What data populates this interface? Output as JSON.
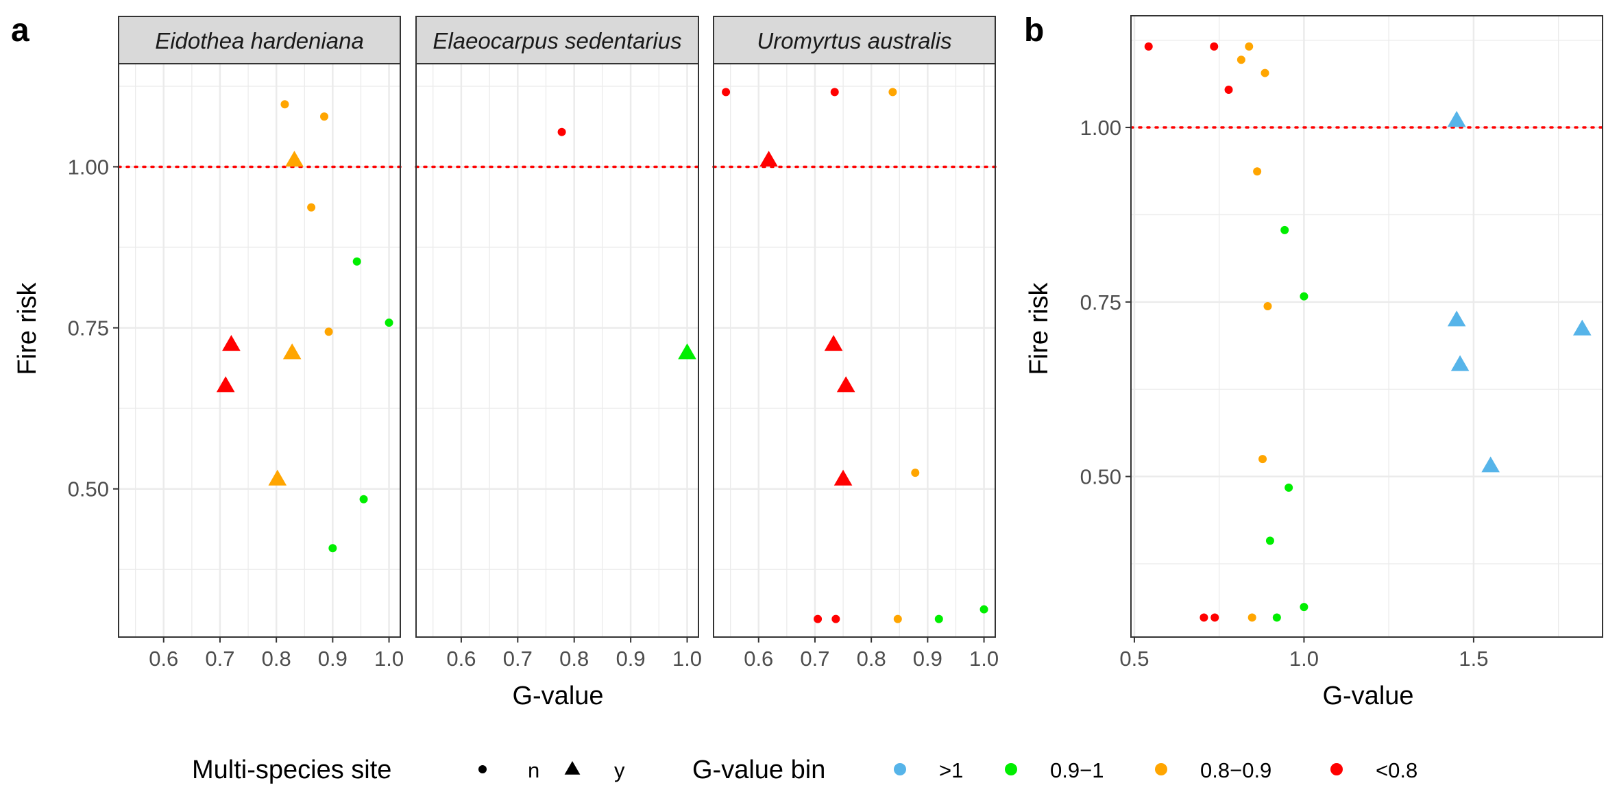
{
  "chart_data": [
    {
      "panel": "a",
      "type": "scatter",
      "xlabel": "G-value",
      "ylabel": "Fire risk",
      "xlim": [
        0.52,
        1.02
      ],
      "ylim": [
        0.27,
        1.16
      ],
      "xticks": [
        "0.6",
        "0.7",
        "0.8",
        "0.9",
        "1.0"
      ],
      "yticks": [
        "0.50",
        "0.75",
        "1.00"
      ],
      "reference_line": {
        "y": 1.0,
        "color": "#ff0000",
        "style": "dotted"
      },
      "facets": [
        {
          "label": "Eidothea hardeniana",
          "points": [
            {
              "x": 0.815,
              "y": 1.097,
              "bin": "0.8-0.9",
              "multi": "n"
            },
            {
              "x": 0.885,
              "y": 1.078,
              "bin": "0.8-0.9",
              "multi": "n"
            },
            {
              "x": 0.832,
              "y": 1.01,
              "bin": "0.8-0.9",
              "multi": "y"
            },
            {
              "x": 0.862,
              "y": 0.937,
              "bin": "0.8-0.9",
              "multi": "n"
            },
            {
              "x": 0.943,
              "y": 0.853,
              "bin": "0.9-1",
              "multi": "n"
            },
            {
              "x": 1.0,
              "y": 0.758,
              "bin": "0.9-1",
              "multi": "n"
            },
            {
              "x": 0.893,
              "y": 0.744,
              "bin": "0.8-0.9",
              "multi": "n"
            },
            {
              "x": 0.72,
              "y": 0.724,
              "bin": "<0.8",
              "multi": "y"
            },
            {
              "x": 0.828,
              "y": 0.711,
              "bin": "0.8-0.9",
              "multi": "y"
            },
            {
              "x": 0.71,
              "y": 0.66,
              "bin": "<0.8",
              "multi": "y"
            },
            {
              "x": 0.802,
              "y": 0.515,
              "bin": "0.8-0.9",
              "multi": "y"
            },
            {
              "x": 0.955,
              "y": 0.484,
              "bin": "0.9-1",
              "multi": "n"
            },
            {
              "x": 0.9,
              "y": 0.408,
              "bin": "0.9-1",
              "multi": "n"
            }
          ]
        },
        {
          "label": "Elaeocarpus sedentarius",
          "points": [
            {
              "x": 0.778,
              "y": 1.054,
              "bin": "<0.8",
              "multi": "n"
            },
            {
              "x": 1.0,
              "y": 0.711,
              "bin": "0.9-1",
              "multi": "y"
            }
          ]
        },
        {
          "label": "Uromyrtus australis",
          "points": [
            {
              "x": 0.542,
              "y": 1.116,
              "bin": "<0.8",
              "multi": "n"
            },
            {
              "x": 0.735,
              "y": 1.116,
              "bin": "<0.8",
              "multi": "n"
            },
            {
              "x": 0.838,
              "y": 1.116,
              "bin": "0.8-0.9",
              "multi": "n"
            },
            {
              "x": 0.618,
              "y": 1.01,
              "bin": "<0.8",
              "multi": "y"
            },
            {
              "x": 0.733,
              "y": 0.724,
              "bin": "<0.8",
              "multi": "y"
            },
            {
              "x": 0.755,
              "y": 0.66,
              "bin": "<0.8",
              "multi": "y"
            },
            {
              "x": 0.75,
              "y": 0.515,
              "bin": "<0.8",
              "multi": "y"
            },
            {
              "x": 0.878,
              "y": 0.525,
              "bin": "0.8-0.9",
              "multi": "n"
            },
            {
              "x": 0.705,
              "y": 0.298,
              "bin": "<0.8",
              "multi": "n"
            },
            {
              "x": 0.737,
              "y": 0.298,
              "bin": "<0.8",
              "multi": "n"
            },
            {
              "x": 0.847,
              "y": 0.298,
              "bin": "0.8-0.9",
              "multi": "n"
            },
            {
              "x": 0.92,
              "y": 0.298,
              "bin": "0.9-1",
              "multi": "n"
            },
            {
              "x": 1.0,
              "y": 0.313,
              "bin": "0.9-1",
              "multi": "n"
            }
          ]
        }
      ]
    },
    {
      "panel": "b",
      "type": "scatter",
      "xlabel": "G-value",
      "ylabel": "Fire risk",
      "xlim": [
        0.49,
        1.88
      ],
      "ylim": [
        0.27,
        1.16
      ],
      "xticks": [
        "0.5",
        "1.0",
        "1.5"
      ],
      "yticks": [
        "0.50",
        "0.75",
        "1.00"
      ],
      "reference_line": {
        "y": 1.0,
        "color": "#ff0000",
        "style": "dotted"
      },
      "points": [
        {
          "x": 0.542,
          "y": 1.116,
          "bin": "<0.8",
          "multi": "n"
        },
        {
          "x": 0.735,
          "y": 1.116,
          "bin": "<0.8",
          "multi": "n"
        },
        {
          "x": 0.838,
          "y": 1.116,
          "bin": "0.8-0.9",
          "multi": "n"
        },
        {
          "x": 0.815,
          "y": 1.097,
          "bin": "0.8-0.9",
          "multi": "n"
        },
        {
          "x": 0.885,
          "y": 1.078,
          "bin": "0.8-0.9",
          "multi": "n"
        },
        {
          "x": 0.778,
          "y": 1.054,
          "bin": "<0.8",
          "multi": "n"
        },
        {
          "x": 1.45,
          "y": 1.01,
          "bin": ">1",
          "multi": "y"
        },
        {
          "x": 0.862,
          "y": 0.937,
          "bin": "0.8-0.9",
          "multi": "n"
        },
        {
          "x": 0.943,
          "y": 0.853,
          "bin": "0.9-1",
          "multi": "n"
        },
        {
          "x": 1.0,
          "y": 0.758,
          "bin": "0.9-1",
          "multi": "n"
        },
        {
          "x": 0.893,
          "y": 0.744,
          "bin": "0.8-0.9",
          "multi": "n"
        },
        {
          "x": 1.45,
          "y": 0.724,
          "bin": ">1",
          "multi": "y"
        },
        {
          "x": 1.82,
          "y": 0.711,
          "bin": ">1",
          "multi": "y"
        },
        {
          "x": 1.46,
          "y": 0.66,
          "bin": ">1",
          "multi": "y"
        },
        {
          "x": 0.878,
          "y": 0.525,
          "bin": "0.8-0.9",
          "multi": "n"
        },
        {
          "x": 1.55,
          "y": 0.515,
          "bin": ">1",
          "multi": "y"
        },
        {
          "x": 0.955,
          "y": 0.484,
          "bin": "0.9-1",
          "multi": "n"
        },
        {
          "x": 0.9,
          "y": 0.408,
          "bin": "0.9-1",
          "multi": "n"
        },
        {
          "x": 1.0,
          "y": 0.313,
          "bin": "0.9-1",
          "multi": "n"
        },
        {
          "x": 0.705,
          "y": 0.298,
          "bin": "<0.8",
          "multi": "n"
        },
        {
          "x": 0.737,
          "y": 0.298,
          "bin": "<0.8",
          "multi": "n"
        },
        {
          "x": 0.847,
          "y": 0.298,
          "bin": "0.8-0.9",
          "multi": "n"
        },
        {
          "x": 0.92,
          "y": 0.298,
          "bin": "0.9-1",
          "multi": "n"
        }
      ]
    }
  ],
  "bin_colors": {
    ">1": "#56b4e9",
    "0.9-1": "#00ee00",
    "0.8-0.9": "#ffa500",
    "<0.8": "#ff0000"
  },
  "legend": {
    "shape_title": "Multi-species site",
    "shape_items": [
      {
        "key": "n",
        "label": "n",
        "icon": "circle"
      },
      {
        "key": "y",
        "label": "y",
        "icon": "triangle"
      }
    ],
    "color_title": "G-value bin",
    "color_items": [
      {
        "key": ">1",
        "label": ">1"
      },
      {
        "key": "0.9-1",
        "label": "0.9−1"
      },
      {
        "key": "0.8-0.9",
        "label": "0.8−0.9"
      },
      {
        "key": "<0.8",
        "label": "<0.8"
      }
    ]
  }
}
